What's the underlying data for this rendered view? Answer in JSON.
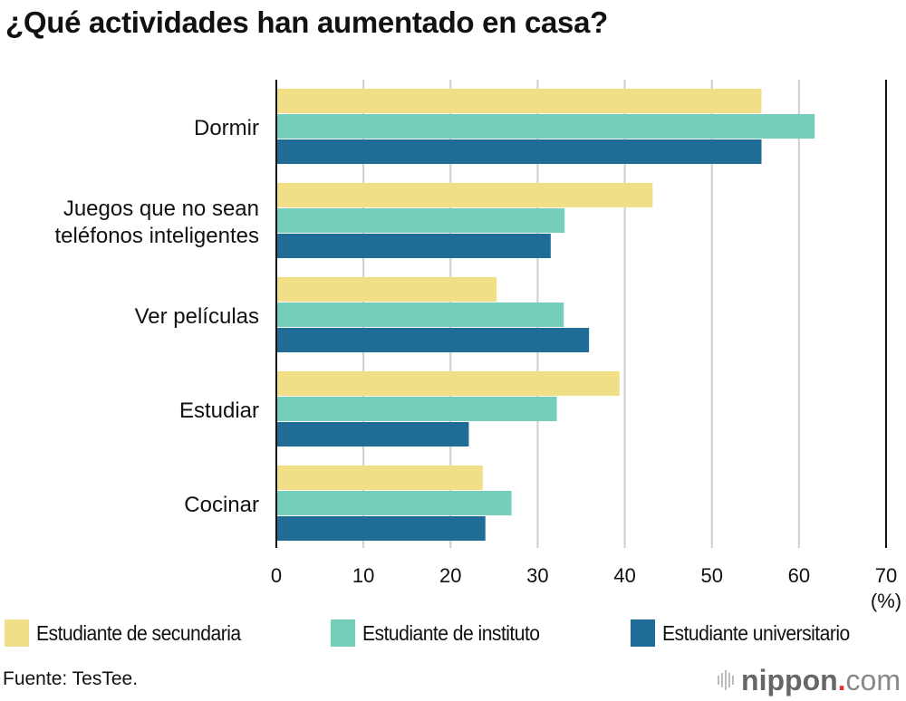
{
  "chart_data": {
    "type": "bar",
    "orientation": "horizontal",
    "title": "¿Qué actividades han aumentado en casa?",
    "xlabel": "",
    "xunit_label": "(%)",
    "ylabel": "",
    "xlim": [
      0,
      70
    ],
    "xticks": [
      0,
      10,
      20,
      30,
      40,
      50,
      60,
      70
    ],
    "grid": true,
    "legend_position": "bottom",
    "categories": [
      [
        "Dormir"
      ],
      [
        "Juegos que no sean",
        "teléfonos inteligentes"
      ],
      [
        "Ver películas"
      ],
      [
        "Estudiar"
      ],
      [
        "Cocinar"
      ]
    ],
    "series": [
      {
        "name": "Estudiante de secundaria",
        "color": "#f0df86",
        "values": [
          55.7,
          43.2,
          25.3,
          39.4,
          23.7
        ]
      },
      {
        "name": "Estudiante de instituto",
        "color": "#74ceb9",
        "values": [
          61.8,
          33.1,
          33.0,
          32.2,
          27.0
        ]
      },
      {
        "name": "Estudiante universitario",
        "color": "#1f6d96",
        "values": [
          55.7,
          31.5,
          35.9,
          22.1,
          24.0
        ]
      }
    ]
  },
  "footer": {
    "source": "Fuente: TesTee.",
    "logo_word": "nippon",
    "logo_dot": ".",
    "logo_com": "com"
  }
}
